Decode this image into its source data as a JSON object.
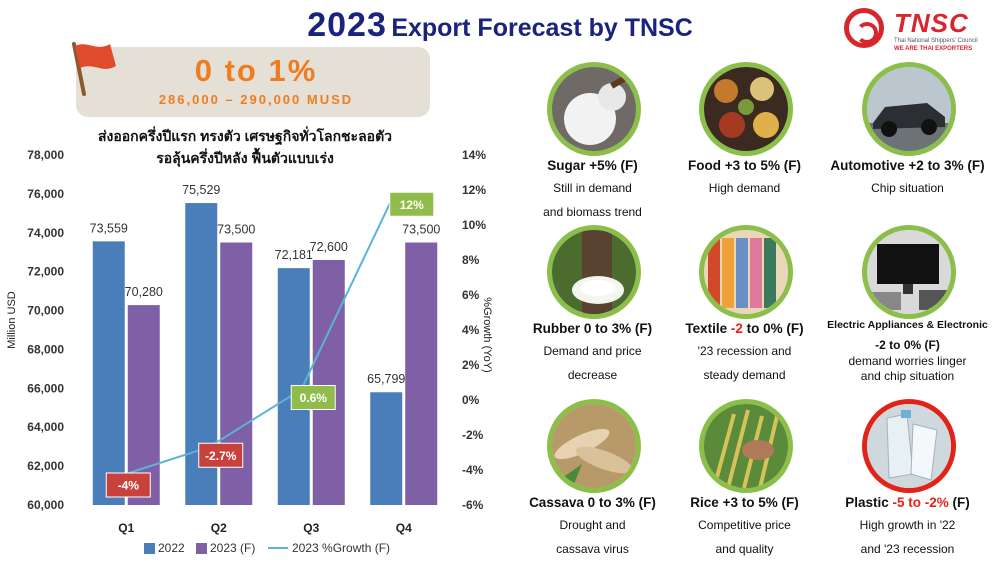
{
  "header": {
    "year": "2023",
    "title_rest": "Export Forecast by TNSC",
    "logo_text": "TNSC",
    "logo_sub1": "Thai National Shippers' Council",
    "logo_sub2": "WE ARE THAI EXPORTERS"
  },
  "banner": {
    "range": "0 to 1%",
    "value": "286,000 – 290,000 MUSD"
  },
  "subtitle": {
    "line1": "ส่งออกครึ่งปีแรก ทรงตัว เศรษฐกิจทั่วโลกชะลอตัว",
    "line2": "รอลุ้นครึ่งปีหลัง ฟื้นตัวแบบเร่ง"
  },
  "chart_data": {
    "type": "bar",
    "categories": [
      "Q1",
      "Q2",
      "Q3",
      "Q4"
    ],
    "series": [
      {
        "name": "2022",
        "color": "#4a7ebb",
        "values": [
          73559,
          75529,
          72181,
          65799
        ],
        "labels": [
          "73,559",
          "75,529",
          "72,181",
          "65,799"
        ]
      },
      {
        "name": "2023 (F)",
        "color": "#7f5fa6",
        "values": [
          70280,
          73500,
          72600,
          73500
        ],
        "labels": [
          "70,280",
          "73,500",
          "72,600",
          "73,500"
        ]
      }
    ],
    "line_series": {
      "name": "2023 %Growth (F)",
      "color": "#5ab4d6",
      "values": [
        -4.4,
        -2.7,
        0.6,
        11.7
      ],
      "labels": [
        "-4%",
        "-2.7%",
        "0.6%",
        "12%"
      ],
      "label_colors": [
        "#c8413b",
        "#c8413b",
        "#8fbc4a",
        "#8fbc4a"
      ]
    },
    "ylabel": "Million USD",
    "ylabel_right": "%Growth (YoY)",
    "ylim": [
      60000,
      78000
    ],
    "y_ticks": [
      "60,000",
      "62,000",
      "64,000",
      "66,000",
      "68,000",
      "70,000",
      "72,000",
      "74,000",
      "76,000",
      "78,000"
    ],
    "ylim_right": [
      -6,
      14
    ],
    "y_ticks_right": [
      "-6%",
      "-4%",
      "-2%",
      "0%",
      "2%",
      "4%",
      "6%",
      "8%",
      "10%",
      "12%",
      "14%"
    ],
    "legend_position": "bottom",
    "grid": false
  },
  "sectors": [
    {
      "name": "Sugar",
      "range": "+5%",
      "suffix": "(F)",
      "desc": [
        "Still in demand",
        "and biomass trend"
      ],
      "icon": "sugar-icon"
    },
    {
      "name": "Food",
      "range": "+3 to 5%",
      "suffix": "(F)",
      "desc": [
        "High demand"
      ],
      "icon": "food-icon"
    },
    {
      "name": "Automotive",
      "range": "+2 to 3%",
      "suffix": "(F)",
      "desc": [
        "Chip situation"
      ],
      "icon": "car-icon"
    },
    {
      "name": "Rubber",
      "range": "0 to 3%",
      "suffix": "(F)",
      "desc": [
        "Demand and price",
        "decrease"
      ],
      "icon": "rubber-icon"
    },
    {
      "name": "Textile",
      "range_neg": "-2",
      "range": "to 0%",
      "suffix": "(F)",
      "desc": [
        "'23 recession and",
        "steady demand"
      ],
      "icon": "textile-icon"
    },
    {
      "name": "Electric Appliances & Electronic",
      "range_neg": "-2",
      "range": "to 0%",
      "suffix": "(F)",
      "desc": [
        "demand worries linger",
        "and chip situation"
      ],
      "icon": "tv-icon"
    },
    {
      "name": "Cassava",
      "range": "0 to 3%",
      "suffix": "(F)",
      "desc": [
        "Drought and",
        "cassava virus"
      ],
      "icon": "cassava-icon"
    },
    {
      "name": "Rice",
      "range": "+3 to 5%",
      "suffix": "(F)",
      "desc": [
        "Competitive price",
        "and quality"
      ],
      "icon": "rice-icon"
    },
    {
      "name": "Plastic",
      "range_neg": "-5 to -2%",
      "range": "",
      "suffix": "(F)",
      "desc": [
        "High growth in '22",
        "and '23 recession"
      ],
      "icon": "plastic-icon"
    }
  ]
}
